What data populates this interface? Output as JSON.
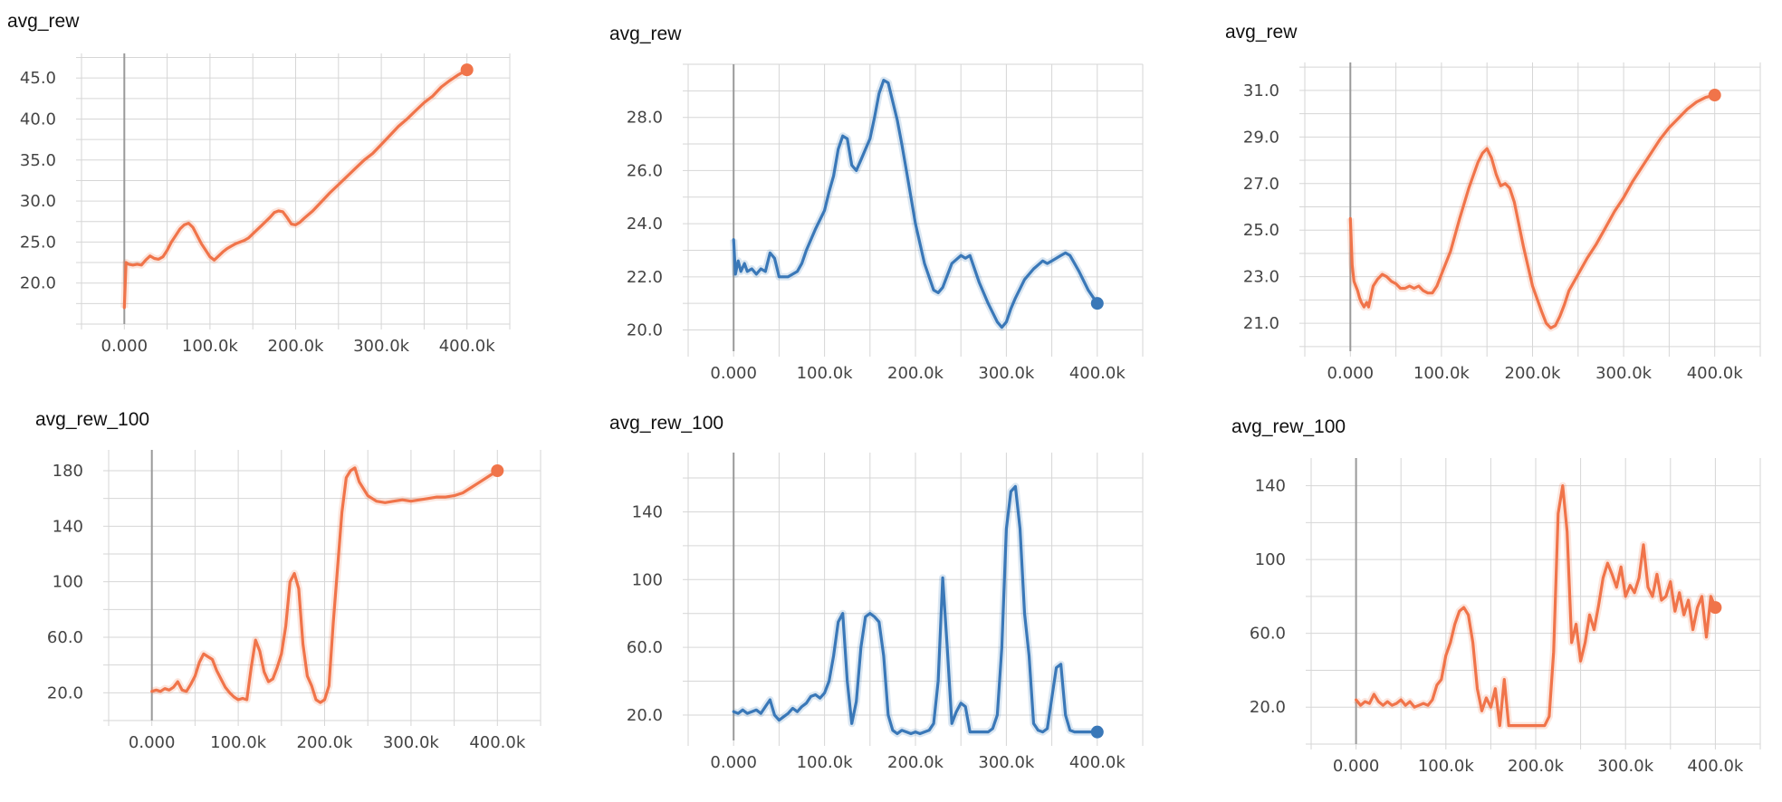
{
  "colors": {
    "orange": "#f0744a",
    "blue": "#3a78b8",
    "grid": "#d6d6d6",
    "axis": "#9a9a9a"
  },
  "chart_data": [
    {
      "type": "line",
      "title": "avg_rew",
      "color": "orange",
      "xlim": [
        -50000,
        450000
      ],
      "ylim": [
        15,
        48
      ],
      "xticks": [
        0,
        100000,
        200000,
        300000,
        400000
      ],
      "xtick_labels": [
        "0.000",
        "100.0k",
        "200.0k",
        "300.0k",
        "400.0k"
      ],
      "yticks": [
        20,
        25,
        30,
        35,
        40,
        45
      ],
      "ytick_labels": [
        "20.0",
        "25.0",
        "30.0",
        "35.0",
        "40.0",
        "45.0"
      ],
      "series": [
        {
          "x": [
            0,
            2000,
            5000,
            10000,
            15000,
            20000,
            25000,
            30000,
            35000,
            40000,
            45000,
            50000,
            55000,
            60000,
            65000,
            70000,
            75000,
            80000,
            85000,
            90000,
            95000,
            100000,
            105000,
            110000,
            115000,
            120000,
            125000,
            130000,
            135000,
            140000,
            145000,
            150000,
            160000,
            170000,
            175000,
            180000,
            185000,
            190000,
            195000,
            200000,
            205000,
            210000,
            220000,
            230000,
            240000,
            250000,
            260000,
            270000,
            280000,
            290000,
            300000,
            310000,
            320000,
            330000,
            340000,
            350000,
            360000,
            370000,
            380000,
            390000,
            400000
          ],
          "y": [
            17,
            22.5,
            22.3,
            22.2,
            22.3,
            22.2,
            22.8,
            23.3,
            23,
            22.9,
            23.2,
            24,
            25,
            25.8,
            26.6,
            27.1,
            27.3,
            26.8,
            25.8,
            24.8,
            24,
            23.2,
            22.8,
            23.3,
            23.8,
            24.2,
            24.5,
            24.8,
            25,
            25.2,
            25.5,
            26,
            27,
            28,
            28.6,
            28.8,
            28.7,
            28,
            27.2,
            27.1,
            27.4,
            27.9,
            28.8,
            29.9,
            31,
            32,
            33,
            34,
            35,
            35.8,
            36.9,
            38,
            39.1,
            40,
            41,
            42,
            42.8,
            43.9,
            44.7,
            45.4,
            46
          ]
        }
      ]
    },
    {
      "type": "line",
      "title": "avg_rew",
      "color": "blue",
      "xlim": [
        -50000,
        450000
      ],
      "ylim": [
        19.2,
        30
      ],
      "xticks": [
        0,
        100000,
        200000,
        300000,
        400000
      ],
      "xtick_labels": [
        "0.000",
        "100.0k",
        "200.0k",
        "300.0k",
        "400.0k"
      ],
      "yticks": [
        20,
        22,
        24,
        26,
        28
      ],
      "ytick_labels": [
        "20.0",
        "22.0",
        "24.0",
        "26.0",
        "28.0"
      ],
      "series": [
        {
          "x": [
            0,
            2000,
            5000,
            8000,
            12000,
            15000,
            20000,
            25000,
            30000,
            35000,
            40000,
            45000,
            50000,
            60000,
            70000,
            75000,
            80000,
            90000,
            100000,
            105000,
            110000,
            115000,
            120000,
            125000,
            130000,
            135000,
            140000,
            145000,
            150000,
            155000,
            160000,
            165000,
            170000,
            175000,
            180000,
            185000,
            190000,
            200000,
            210000,
            220000,
            225000,
            230000,
            240000,
            250000,
            255000,
            260000,
            270000,
            280000,
            290000,
            295000,
            300000,
            305000,
            310000,
            320000,
            330000,
            340000,
            345000,
            350000,
            360000,
            365000,
            370000,
            375000,
            380000,
            390000,
            400000
          ],
          "y": [
            23.4,
            22.1,
            22.6,
            22.2,
            22.5,
            22.2,
            22.3,
            22.1,
            22.3,
            22.2,
            22.9,
            22.7,
            22,
            22,
            22.2,
            22.5,
            23,
            23.8,
            24.5,
            25.2,
            25.8,
            26.8,
            27.3,
            27.2,
            26.2,
            26,
            26.4,
            26.8,
            27.2,
            28,
            28.9,
            29.4,
            29.3,
            28.6,
            27.9,
            27,
            26,
            24,
            22.5,
            21.5,
            21.4,
            21.6,
            22.5,
            22.8,
            22.7,
            22.8,
            21.8,
            21,
            20.3,
            20.1,
            20.3,
            20.8,
            21.2,
            21.9,
            22.3,
            22.6,
            22.5,
            22.6,
            22.8,
            22.9,
            22.8,
            22.5,
            22.2,
            21.5,
            21
          ]
        }
      ]
    },
    {
      "type": "line",
      "title": "avg_rew",
      "color": "orange",
      "xlim": [
        -50000,
        450000
      ],
      "ylim": [
        19.8,
        32.2
      ],
      "xticks": [
        0,
        100000,
        200000,
        300000,
        400000
      ],
      "xtick_labels": [
        "0.000",
        "100.0k",
        "200.0k",
        "300.0k",
        "400.0k"
      ],
      "yticks": [
        21,
        23,
        25,
        27,
        29,
        31
      ],
      "ytick_labels": [
        "21.0",
        "23.0",
        "25.0",
        "27.0",
        "29.0",
        "31.0"
      ],
      "series": [
        {
          "x": [
            0,
            2000,
            4000,
            6000,
            8000,
            10000,
            12000,
            15000,
            18000,
            20000,
            25000,
            30000,
            35000,
            40000,
            45000,
            50000,
            55000,
            60000,
            65000,
            70000,
            75000,
            80000,
            85000,
            90000,
            95000,
            100000,
            110000,
            120000,
            130000,
            140000,
            145000,
            150000,
            155000,
            160000,
            165000,
            170000,
            175000,
            180000,
            190000,
            200000,
            210000,
            215000,
            220000,
            225000,
            230000,
            235000,
            240000,
            250000,
            260000,
            270000,
            280000,
            290000,
            300000,
            310000,
            320000,
            330000,
            340000,
            350000,
            360000,
            370000,
            380000,
            390000,
            400000
          ],
          "y": [
            25.5,
            23.5,
            22.8,
            22.6,
            22.4,
            22.1,
            21.9,
            21.7,
            21.9,
            21.7,
            22.6,
            22.9,
            23.1,
            23,
            22.8,
            22.7,
            22.5,
            22.5,
            22.6,
            22.5,
            22.6,
            22.4,
            22.3,
            22.3,
            22.6,
            23.1,
            24.1,
            25.5,
            26.8,
            27.9,
            28.3,
            28.5,
            28.1,
            27.4,
            26.9,
            27,
            26.8,
            26.2,
            24.3,
            22.6,
            21.5,
            21,
            20.8,
            20.9,
            21.3,
            21.8,
            22.4,
            23.1,
            23.8,
            24.4,
            25.1,
            25.8,
            26.4,
            27.1,
            27.7,
            28.3,
            28.9,
            29.4,
            29.8,
            30.2,
            30.5,
            30.7,
            30.8
          ]
        }
      ]
    },
    {
      "type": "line",
      "title": "avg_rew_100",
      "color": "orange",
      "xlim": [
        -50000,
        450000
      ],
      "ylim": [
        0,
        195
      ],
      "xticks": [
        0,
        100000,
        200000,
        300000,
        400000
      ],
      "xtick_labels": [
        "0.000",
        "100.0k",
        "200.0k",
        "300.0k",
        "400.0k"
      ],
      "yticks": [
        20,
        60,
        100,
        140,
        180
      ],
      "ytick_labels": [
        "20.0",
        "60.0",
        "100",
        "140",
        "180"
      ],
      "series": [
        {
          "x": [
            0,
            5000,
            10000,
            15000,
            20000,
            25000,
            30000,
            35000,
            40000,
            45000,
            50000,
            55000,
            60000,
            65000,
            70000,
            75000,
            80000,
            85000,
            90000,
            95000,
            100000,
            105000,
            110000,
            115000,
            120000,
            125000,
            130000,
            135000,
            140000,
            145000,
            150000,
            155000,
            160000,
            165000,
            170000,
            175000,
            180000,
            185000,
            190000,
            195000,
            200000,
            205000,
            210000,
            215000,
            220000,
            225000,
            230000,
            235000,
            240000,
            250000,
            260000,
            270000,
            280000,
            290000,
            300000,
            310000,
            320000,
            330000,
            340000,
            350000,
            360000,
            370000,
            380000,
            390000,
            400000
          ],
          "y": [
            21,
            22,
            21,
            23,
            22,
            24,
            28,
            22,
            21,
            26,
            32,
            42,
            48,
            46,
            44,
            36,
            30,
            24,
            20,
            17,
            15,
            16,
            15,
            38,
            58,
            50,
            35,
            28,
            30,
            38,
            48,
            68,
            100,
            106,
            95,
            55,
            32,
            25,
            15,
            13,
            15,
            25,
            70,
            110,
            150,
            175,
            180,
            182,
            172,
            162,
            158,
            157,
            158,
            159,
            158,
            159,
            160,
            161,
            161,
            162,
            164,
            168,
            172,
            176,
            180
          ]
        }
      ]
    },
    {
      "type": "line",
      "title": "avg_rew_100",
      "color": "blue",
      "xlim": [
        -50000,
        450000
      ],
      "ylim": [
        5,
        175
      ],
      "xticks": [
        0,
        100000,
        200000,
        300000,
        400000
      ],
      "xtick_labels": [
        "0.000",
        "100.0k",
        "200.0k",
        "300.0k",
        "400.0k"
      ],
      "yticks": [
        20,
        60,
        100,
        140
      ],
      "ytick_labels": [
        "20.0",
        "60.0",
        "100",
        "140"
      ],
      "series": [
        {
          "x": [
            0,
            5000,
            10000,
            15000,
            20000,
            25000,
            30000,
            35000,
            40000,
            45000,
            50000,
            55000,
            60000,
            65000,
            70000,
            75000,
            80000,
            85000,
            90000,
            95000,
            100000,
            105000,
            110000,
            115000,
            120000,
            125000,
            130000,
            135000,
            140000,
            145000,
            150000,
            155000,
            160000,
            165000,
            170000,
            175000,
            180000,
            185000,
            190000,
            195000,
            200000,
            205000,
            210000,
            215000,
            220000,
            225000,
            230000,
            235000,
            240000,
            245000,
            250000,
            255000,
            260000,
            265000,
            270000,
            275000,
            280000,
            285000,
            290000,
            295000,
            300000,
            305000,
            310000,
            315000,
            320000,
            325000,
            330000,
            335000,
            340000,
            345000,
            350000,
            355000,
            360000,
            365000,
            370000,
            375000,
            380000,
            385000,
            390000,
            395000,
            400000
          ],
          "y": [
            22,
            21,
            23,
            21,
            22,
            23,
            21,
            25,
            29,
            20,
            17,
            19,
            21,
            24,
            22,
            25,
            27,
            31,
            32,
            30,
            33,
            40,
            55,
            75,
            80,
            40,
            15,
            28,
            60,
            78,
            80,
            78,
            75,
            55,
            20,
            11,
            9,
            11,
            10,
            9,
            10,
            9,
            10,
            11,
            15,
            40,
            101,
            60,
            15,
            22,
            27,
            25,
            10,
            10,
            10,
            10,
            10,
            12,
            20,
            60,
            130,
            152,
            155,
            130,
            80,
            55,
            15,
            11,
            10,
            12,
            30,
            48,
            50,
            20,
            11,
            10,
            10,
            10,
            10,
            10,
            10
          ]
        }
      ]
    },
    {
      "type": "line",
      "title": "avg_rew_100",
      "color": "orange",
      "xlim": [
        -50000,
        450000
      ],
      "ylim": [
        0,
        155
      ],
      "xticks": [
        0,
        100000,
        200000,
        300000,
        400000
      ],
      "xtick_labels": [
        "0.000",
        "100.0k",
        "200.0k",
        "300.0k",
        "400.0k"
      ],
      "yticks": [
        20,
        60,
        100,
        140
      ],
      "ytick_labels": [
        "20.0",
        "60.0",
        "100",
        "140"
      ],
      "series": [
        {
          "x": [
            0,
            5000,
            10000,
            15000,
            20000,
            25000,
            30000,
            35000,
            40000,
            45000,
            50000,
            55000,
            60000,
            65000,
            70000,
            75000,
            80000,
            85000,
            90000,
            95000,
            100000,
            105000,
            110000,
            115000,
            120000,
            125000,
            130000,
            135000,
            140000,
            145000,
            150000,
            155000,
            160000,
            165000,
            170000,
            175000,
            180000,
            185000,
            190000,
            195000,
            200000,
            205000,
            210000,
            215000,
            220000,
            225000,
            230000,
            235000,
            240000,
            245000,
            250000,
            255000,
            260000,
            265000,
            270000,
            275000,
            280000,
            285000,
            290000,
            295000,
            300000,
            305000,
            310000,
            315000,
            320000,
            325000,
            330000,
            335000,
            340000,
            345000,
            350000,
            355000,
            360000,
            365000,
            370000,
            375000,
            380000,
            385000,
            390000,
            395000,
            400000
          ],
          "y": [
            24,
            21,
            23,
            22,
            27,
            23,
            21,
            23,
            21,
            22,
            24,
            21,
            23,
            20,
            21,
            22,
            21,
            24,
            32,
            35,
            48,
            55,
            65,
            72,
            74,
            70,
            55,
            30,
            18,
            25,
            20,
            30,
            10,
            35,
            10,
            10,
            10,
            10,
            10,
            10,
            10,
            10,
            10,
            15,
            50,
            125,
            140,
            115,
            55,
            65,
            45,
            55,
            70,
            62,
            75,
            90,
            98,
            92,
            85,
            96,
            80,
            86,
            82,
            90,
            108,
            85,
            80,
            92,
            78,
            80,
            88,
            72,
            82,
            70,
            78,
            62,
            74,
            80,
            58,
            80,
            74
          ]
        }
      ]
    }
  ]
}
